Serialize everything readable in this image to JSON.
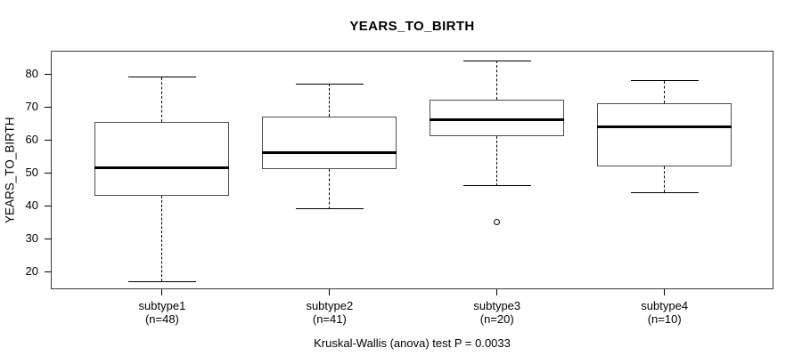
{
  "figure": {
    "background": "#ffffff",
    "line_color": "#000000",
    "box_border_color": "#4d4d4d",
    "frame_color": "#3c3c3c"
  },
  "chart_data": {
    "type": "boxplot",
    "title": "YEARS_TO_BIRTH",
    "ylabel": "YEARS_TO_BIRTH",
    "xlabel": "",
    "footer": "Kruskal-Wallis (anova) test P = 0.0033",
    "grid": false,
    "legend": "none",
    "ylim": [
      14.6,
      86.8
    ],
    "yticks": [
      20,
      30,
      40,
      50,
      60,
      70,
      80
    ],
    "categories": [
      "subtype1",
      "subtype2",
      "subtype3",
      "subtype4"
    ],
    "groups": [
      {
        "label": "subtype1",
        "sublabel": "(n=48)",
        "n": 48,
        "low": 17,
        "q1": 43,
        "median": 51.5,
        "q3": 65.5,
        "high": 79,
        "outliers": []
      },
      {
        "label": "subtype2",
        "sublabel": "(n=41)",
        "n": 41,
        "low": 39,
        "q1": 51,
        "median": 56,
        "q3": 67,
        "high": 77,
        "outliers": []
      },
      {
        "label": "subtype3",
        "sublabel": "(n=20)",
        "n": 20,
        "low": 46,
        "q1": 61,
        "median": 66,
        "q3": 72.3,
        "high": 84,
        "outliers": [
          35
        ]
      },
      {
        "label": "subtype4",
        "sublabel": "(n=10)",
        "n": 10,
        "low": 44,
        "q1": 52,
        "median": 64,
        "q3": 71,
        "high": 78,
        "outliers": []
      }
    ]
  }
}
